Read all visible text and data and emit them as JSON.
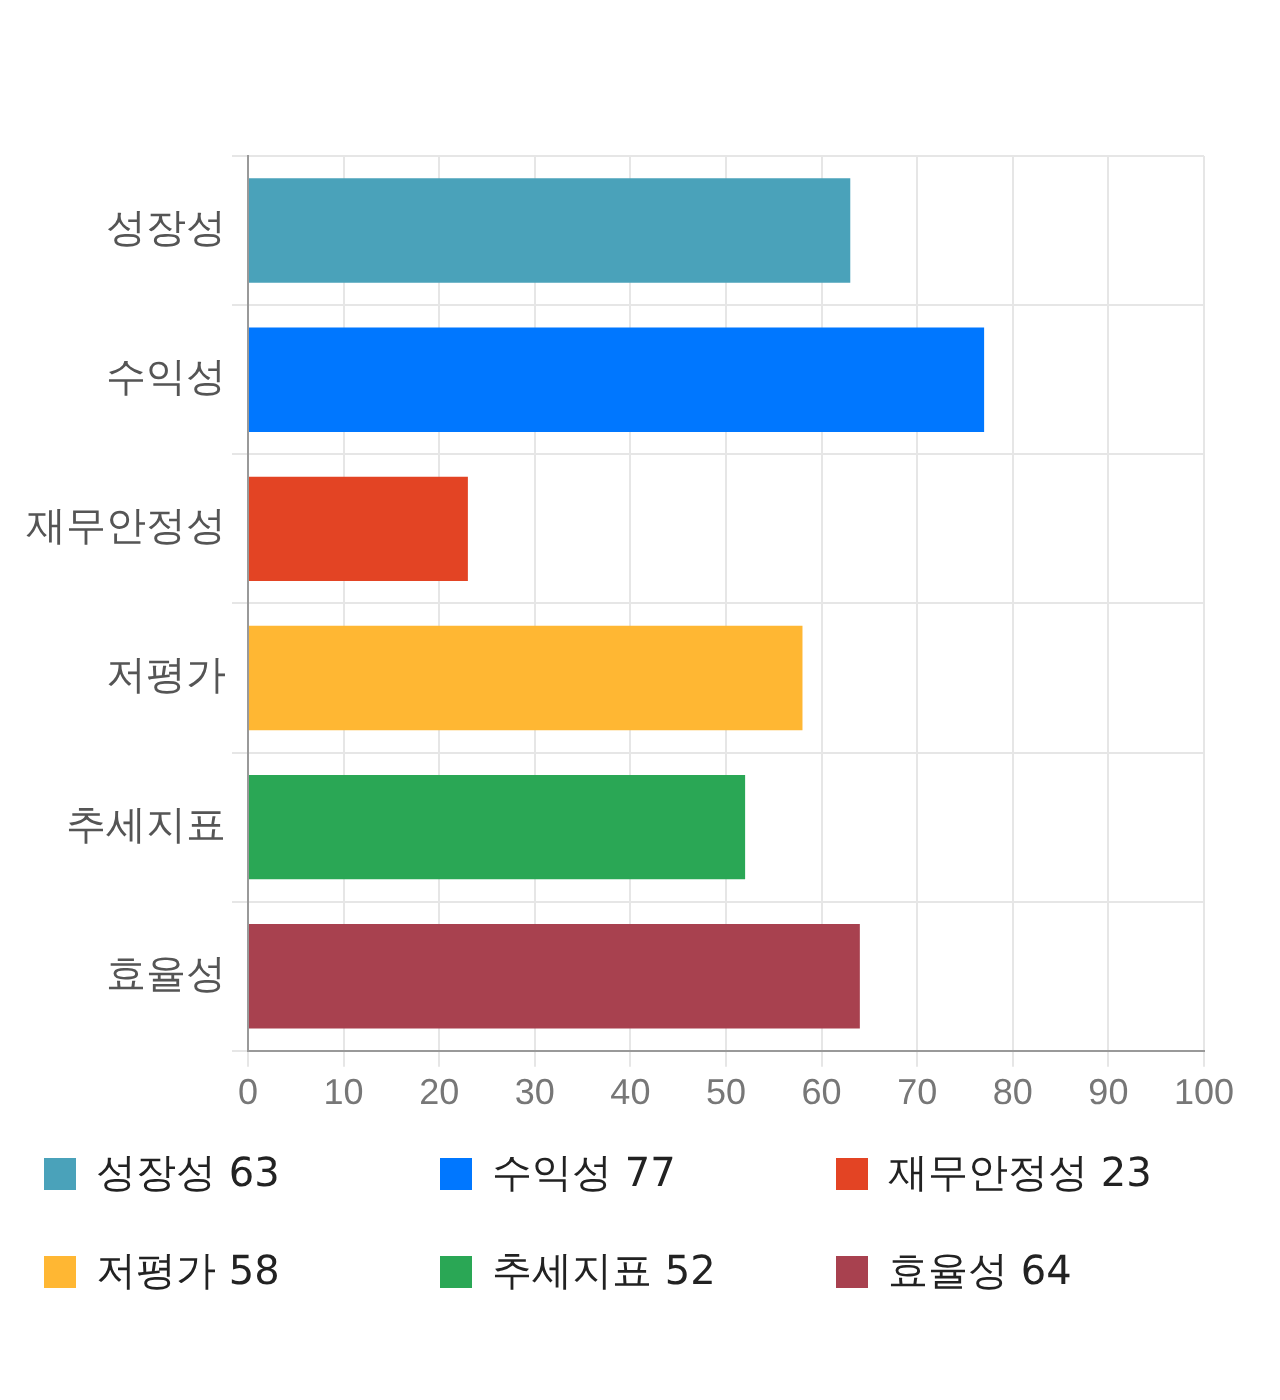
{
  "chart_data": {
    "type": "bar",
    "orientation": "horizontal",
    "categories": [
      "성장성",
      "수익성",
      "재무안정성",
      "저평가",
      "추세지표",
      "효율성"
    ],
    "values": [
      63,
      77,
      23,
      58,
      52,
      64
    ],
    "colors": [
      "#4aa2ba",
      "#0077ff",
      "#e34424",
      "#ffb733",
      "#2aa755",
      "#a8414f"
    ],
    "xlim": [
      0,
      100
    ],
    "xticks": [
      0,
      10,
      20,
      30,
      40,
      50,
      60,
      70,
      80,
      90,
      100
    ],
    "grid": true,
    "annotations": [
      "성장성 63",
      "수익성 77",
      "재무안정성 23",
      "저평가 58",
      "추세지표 52",
      "효율성 64"
    ]
  }
}
